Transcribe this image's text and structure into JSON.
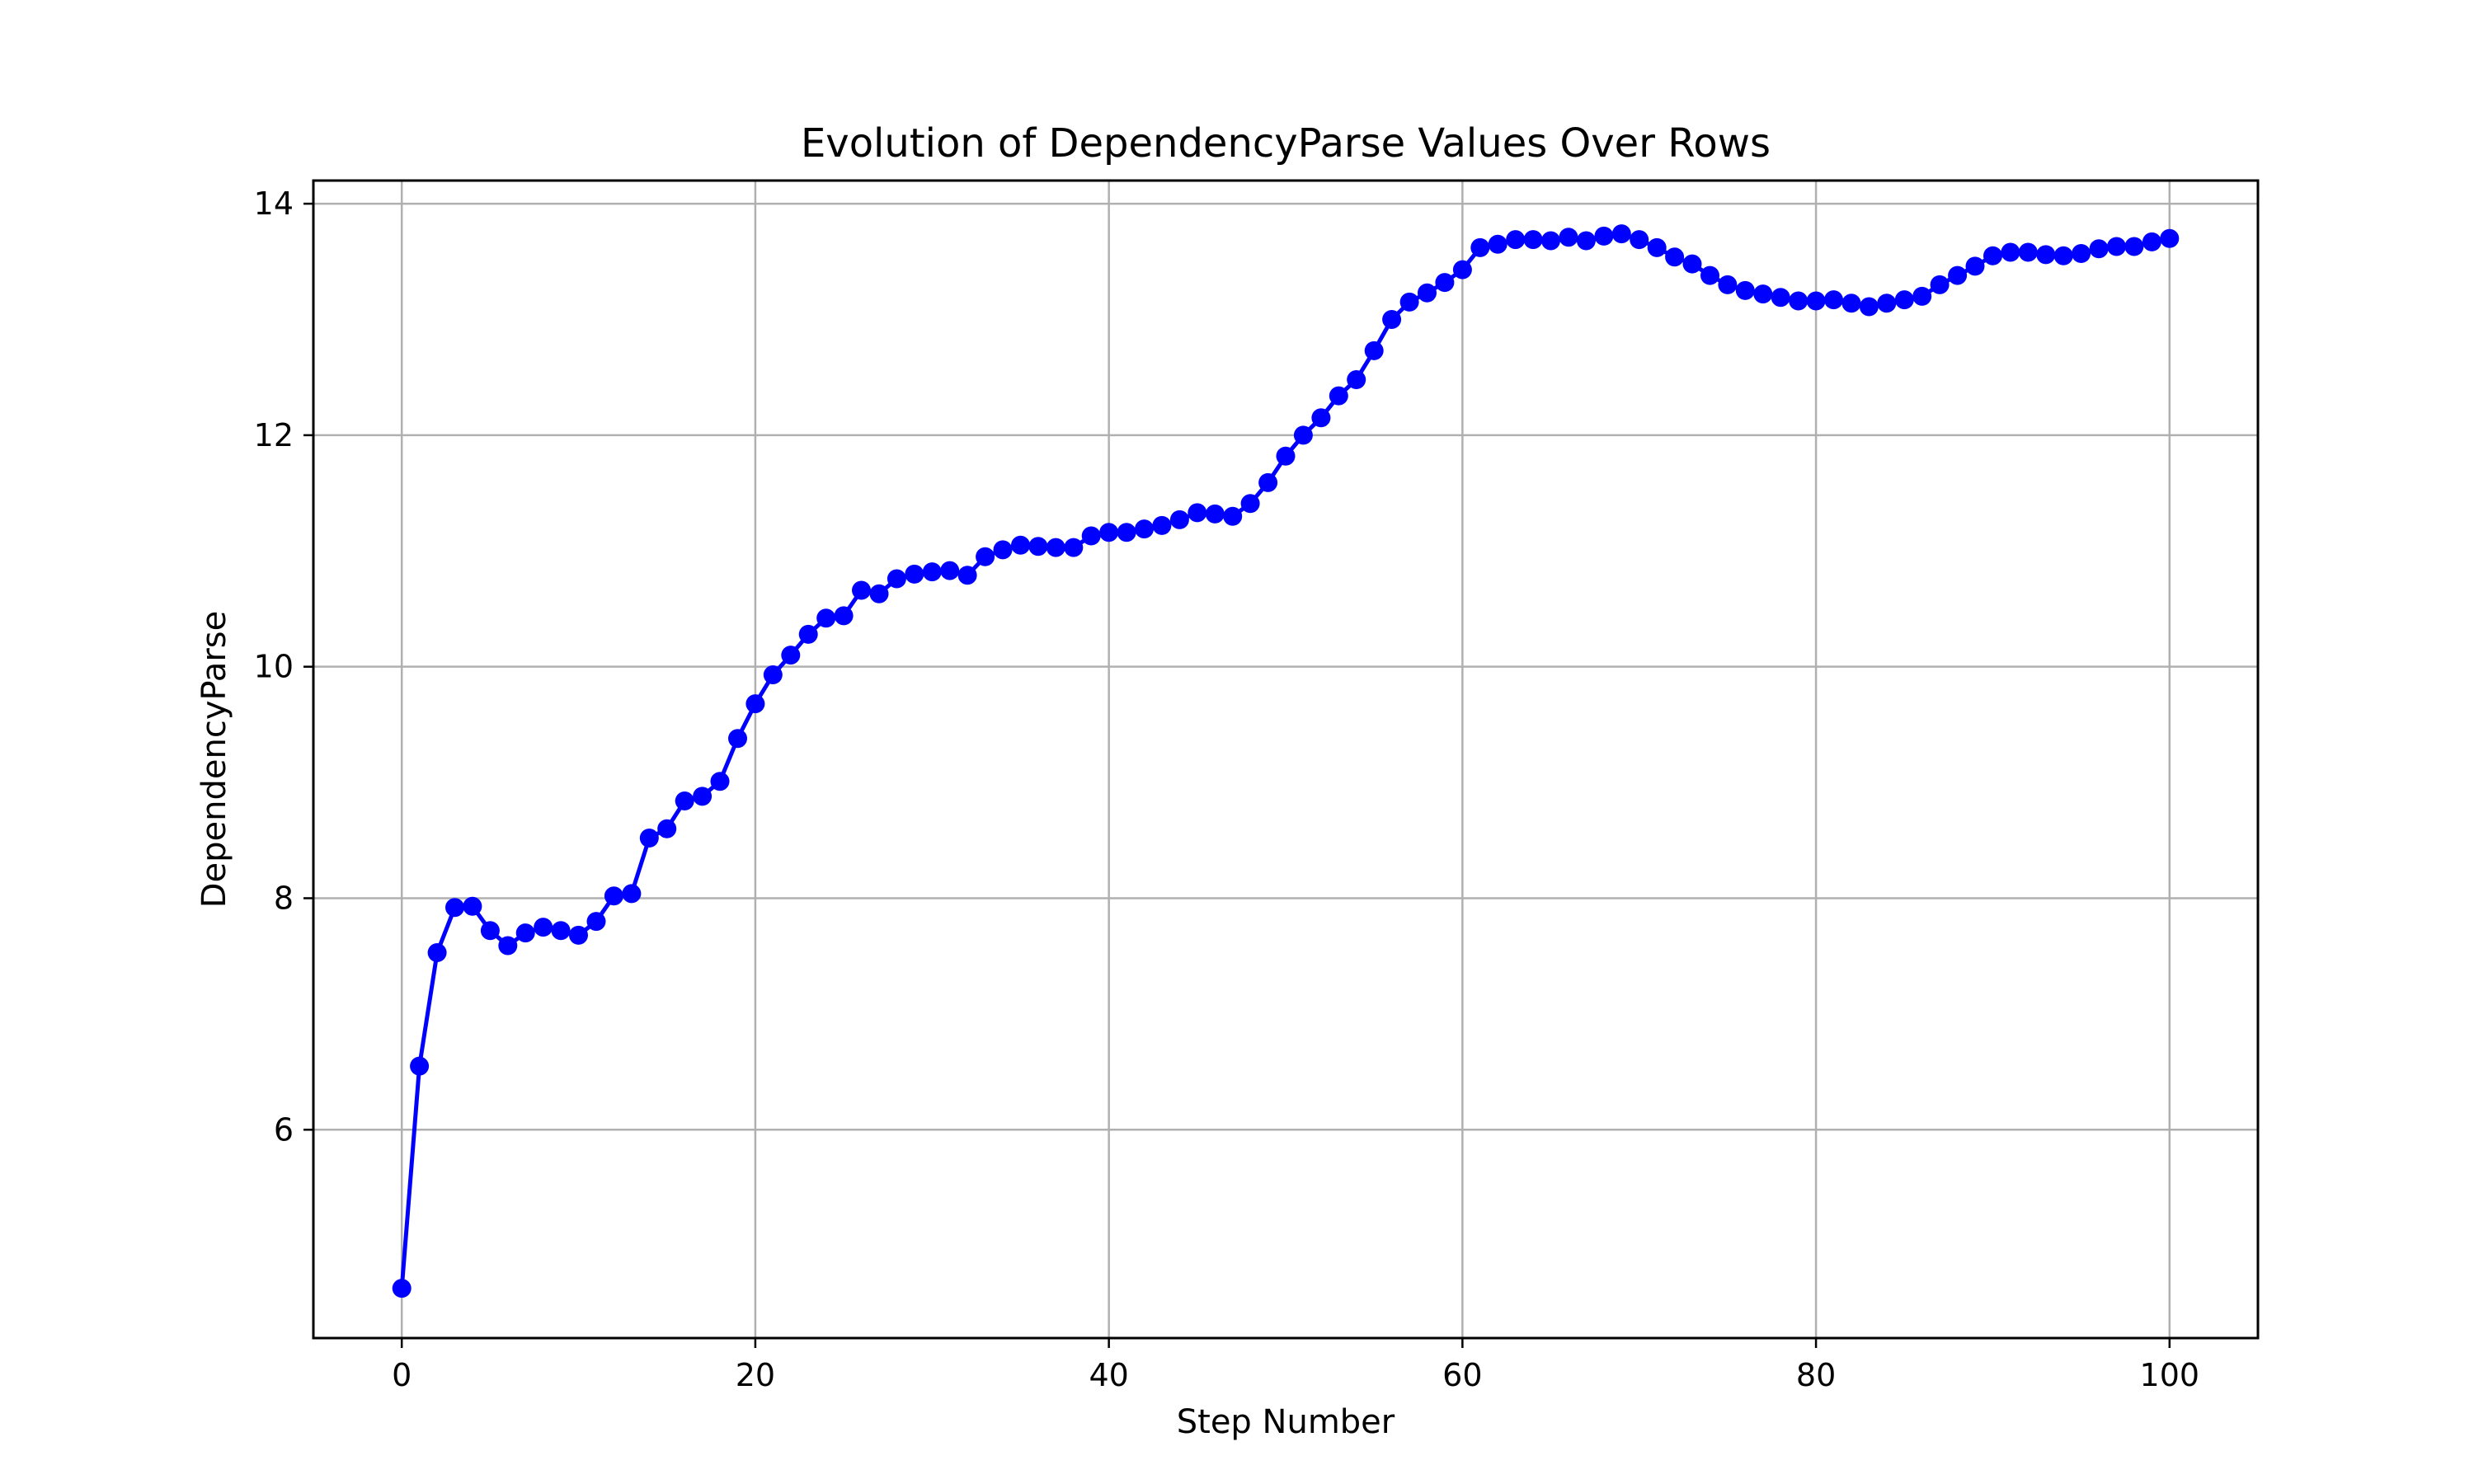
{
  "chart_data": {
    "type": "line",
    "title": "Evolution of DependencyParse Values Over Rows",
    "xlabel": "Step Number",
    "ylabel": "DependencyParse",
    "xlim": [
      -5,
      105
    ],
    "ylim": [
      4.2,
      14.2
    ],
    "xticks": [
      0,
      20,
      40,
      60,
      80,
      100
    ],
    "yticks": [
      6,
      8,
      10,
      12,
      14
    ],
    "grid": true,
    "marker": "circle",
    "color": "#0000ff",
    "series": [
      {
        "name": "",
        "x": [
          0,
          1,
          2,
          3,
          4,
          5,
          6,
          7,
          8,
          9,
          10,
          11,
          12,
          13,
          14,
          15,
          16,
          17,
          18,
          19,
          20,
          21,
          22,
          23,
          24,
          25,
          26,
          27,
          28,
          29,
          30,
          31,
          32,
          33,
          34,
          35,
          36,
          37,
          38,
          39,
          40,
          41,
          42,
          43,
          44,
          45,
          46,
          47,
          48,
          49,
          50,
          51,
          52,
          53,
          54,
          55,
          56,
          57,
          58,
          59,
          60,
          61,
          62,
          63,
          64,
          65,
          66,
          67,
          68,
          69,
          70,
          71,
          72,
          73,
          74,
          75,
          76,
          77,
          78,
          79,
          80,
          81,
          82,
          83,
          84,
          85,
          86,
          87,
          88,
          89,
          90,
          91,
          92,
          93,
          94,
          95,
          96,
          97,
          98,
          99,
          100
        ],
        "y": [
          4.63,
          6.55,
          7.53,
          7.92,
          7.93,
          7.72,
          7.59,
          7.7,
          7.75,
          7.72,
          7.68,
          7.8,
          8.02,
          8.04,
          8.52,
          8.6,
          8.84,
          8.88,
          9.01,
          9.38,
          9.68,
          9.93,
          10.1,
          10.28,
          10.42,
          10.44,
          10.66,
          10.63,
          10.76,
          10.8,
          10.82,
          10.83,
          10.79,
          10.95,
          11.01,
          11.05,
          11.04,
          11.03,
          11.03,
          11.13,
          11.16,
          11.16,
          11.19,
          11.22,
          11.27,
          11.33,
          11.32,
          11.3,
          11.41,
          11.59,
          11.82,
          12.0,
          12.15,
          12.34,
          12.48,
          12.73,
          13.0,
          13.15,
          13.23,
          13.32,
          13.43,
          13.62,
          13.65,
          13.69,
          13.69,
          13.68,
          13.71,
          13.68,
          13.72,
          13.74,
          13.69,
          13.62,
          13.54,
          13.48,
          13.38,
          13.3,
          13.25,
          13.22,
          13.19,
          13.16,
          13.16,
          13.17,
          13.14,
          13.11,
          13.14,
          13.17,
          13.2,
          13.3,
          13.38,
          13.46,
          13.55,
          13.58,
          13.58,
          13.56,
          13.55,
          13.57,
          13.61,
          13.63,
          13.63,
          13.67,
          13.7
        ]
      }
    ]
  }
}
